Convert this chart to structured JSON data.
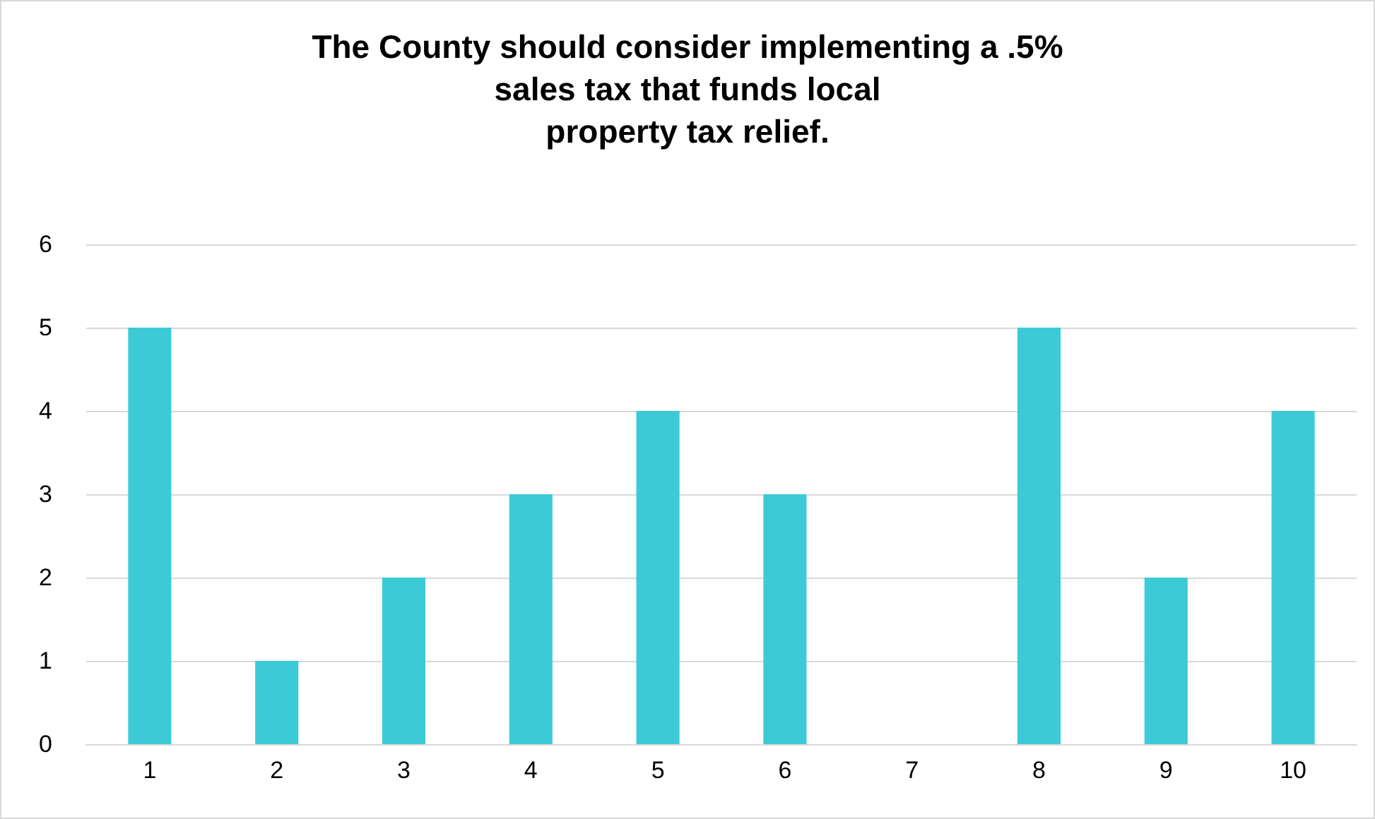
{
  "chart_data": {
    "type": "bar",
    "title": "The County should consider implementing a .5%\nsales tax that funds local\nproperty tax relief.",
    "categories": [
      "1",
      "2",
      "3",
      "4",
      "5",
      "6",
      "7",
      "8",
      "9",
      "10"
    ],
    "values": [
      5,
      1,
      2,
      3,
      4,
      3,
      0,
      5,
      2,
      4
    ],
    "color": "#3ccbd6",
    "ylim": [
      0,
      6
    ],
    "yticks": [
      0,
      1,
      2,
      3,
      4,
      5,
      6
    ],
    "grid": "y"
  }
}
